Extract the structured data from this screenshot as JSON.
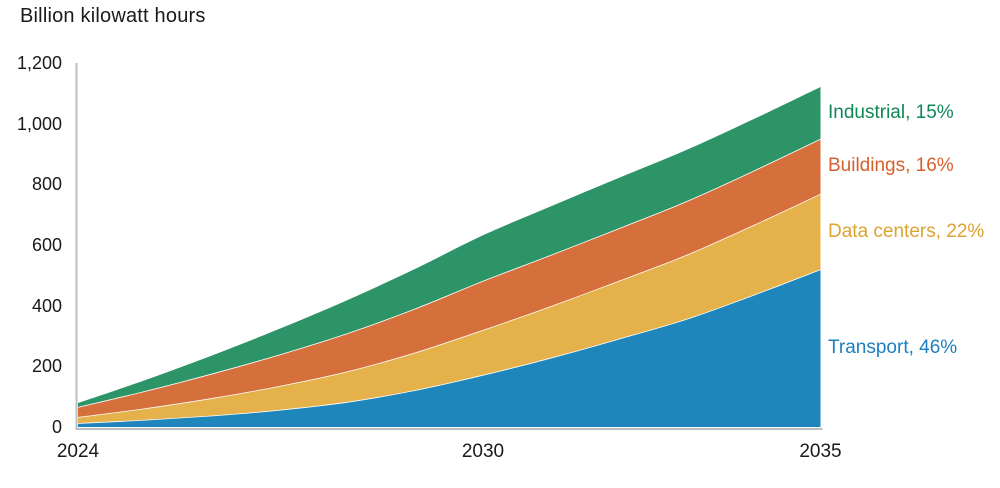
{
  "chart_data": {
    "type": "area",
    "stacked": true,
    "title": "Billion kilowatt hours",
    "x": [
      2024,
      2025,
      2026,
      2027,
      2028,
      2029,
      2030,
      2031,
      2032,
      2033,
      2034,
      2035
    ],
    "ylim": [
      0,
      1200
    ],
    "grid": "off",
    "legend_position": "right of area, aligned to band midpoints",
    "axis_color": "#bcbfc0",
    "text_color": "#1a1a1a",
    "band_separator_color": "#ffffff",
    "yticks": [
      {
        "value": 0,
        "label": "0"
      },
      {
        "value": 200,
        "label": "200"
      },
      {
        "value": 400,
        "label": "400"
      },
      {
        "value": 600,
        "label": "600"
      },
      {
        "value": 800,
        "label": "800"
      },
      {
        "value": 1000,
        "label": "1,000"
      },
      {
        "value": 1200,
        "label": "1,200"
      }
    ],
    "xticks": [
      {
        "year": 2024,
        "label": "2024"
      },
      {
        "year": 2030,
        "label": "2030"
      },
      {
        "year": 2035,
        "label": "2035"
      }
    ],
    "series": [
      {
        "name": "Transport",
        "legend_label": "Transport, 46%",
        "share_pct": "46%",
        "color": "#1e86bb",
        "label_color": "#1b7fc0",
        "values": [
          13,
          24,
          38,
          57,
          83,
          122,
          172,
          228,
          290,
          355,
          435,
          520
        ]
      },
      {
        "name": "Data centers",
        "legend_label": "Data centers, 22%",
        "share_pct": "22%",
        "color": "#e5b14b",
        "label_color": "#dda32f",
        "values": [
          20,
          38,
          58,
          79,
          101,
          124,
          148,
          170,
          191,
          211,
          230,
          249
        ]
      },
      {
        "name": "Buildings",
        "legend_label": "Buildings, 16%",
        "share_pct": "16%",
        "color": "#d5703d",
        "label_color": "#d85f2b",
        "values": [
          33,
          57,
          81,
          104,
          126,
          145,
          162,
          169,
          173,
          177,
          179,
          181
        ]
      },
      {
        "name": "Industrial",
        "legend_label": "Industrial, 15%",
        "share_pct": "15%",
        "color": "#2d9467",
        "label_color": "#0f8757",
        "values": [
          13,
          36,
          60,
          85,
          109,
          131,
          150,
          160,
          166,
          169,
          170,
          171
        ]
      }
    ]
  }
}
